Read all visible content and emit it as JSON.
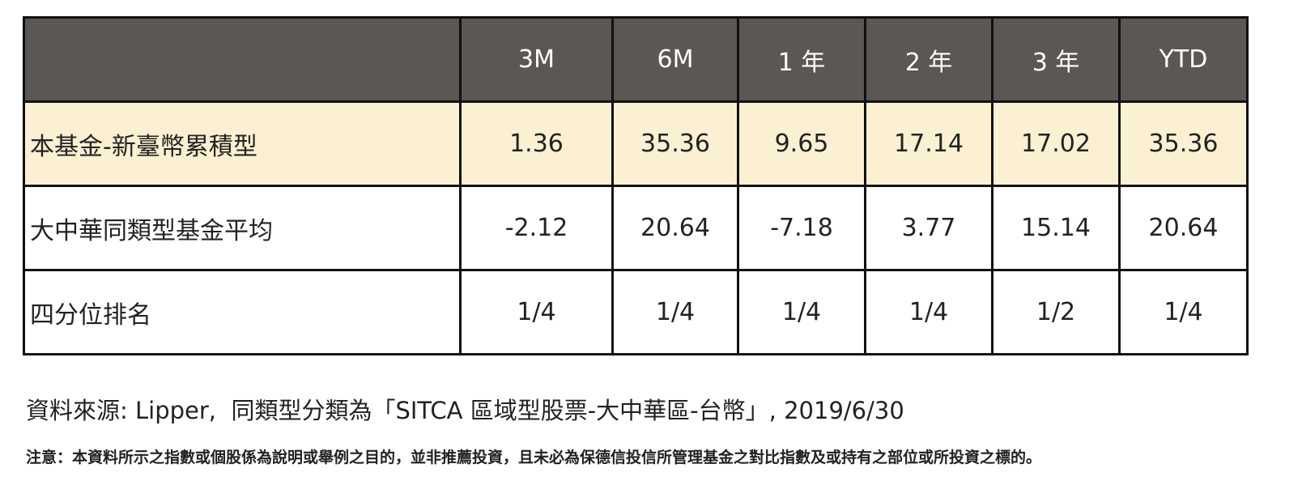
{
  "table": {
    "header": [
      "3M",
      "6M",
      "1 年",
      "2 年",
      "3 年",
      "YTD"
    ],
    "rows": [
      [
        "本基金-新臺幣累積型",
        "1.36",
        "35.36",
        "9.65",
        "17.14",
        "17.02",
        "35.36"
      ],
      [
        "大中華同類型基金平均",
        "-2.12",
        "20.64",
        "-7.18",
        "3.77",
        "15.14",
        "20.64"
      ],
      [
        "四分位排名",
        "1/4",
        "1/4",
        "1/4",
        "1/4",
        "1/2",
        "1/4"
      ]
    ]
  },
  "source": "資料來源: Lipper,  同類型分類為「SITCA 區域型股票-大中華區-台幣」, 2019/6/30",
  "note": "注意：本資料所示之指數或個股係為說明或舉例之目的，並非推薦投資，且未必為保德信投信所管理基金之對比指數及或持有之部位或所投資之標的。"
}
